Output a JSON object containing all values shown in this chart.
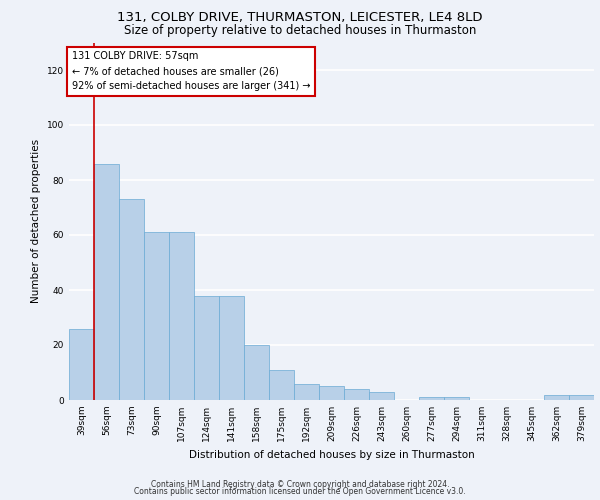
{
  "title_line1": "131, COLBY DRIVE, THURMASTON, LEICESTER, LE4 8LD",
  "title_line2": "Size of property relative to detached houses in Thurmaston",
  "xlabel": "Distribution of detached houses by size in Thurmaston",
  "ylabel": "Number of detached properties",
  "categories": [
    "39sqm",
    "56sqm",
    "73sqm",
    "90sqm",
    "107sqm",
    "124sqm",
    "141sqm",
    "158sqm",
    "175sqm",
    "192sqm",
    "209sqm",
    "226sqm",
    "243sqm",
    "260sqm",
    "277sqm",
    "294sqm",
    "311sqm",
    "328sqm",
    "345sqm",
    "362sqm",
    "379sqm"
  ],
  "values": [
    26,
    86,
    73,
    61,
    61,
    38,
    38,
    20,
    11,
    6,
    5,
    4,
    3,
    0,
    1,
    1,
    0,
    0,
    0,
    2,
    2
  ],
  "bar_color": "#b8d0e8",
  "bar_edge_color": "#6aaad4",
  "highlight_color": "#cc0000",
  "annotation_text": "131 COLBY DRIVE: 57sqm\n← 7% of detached houses are smaller (26)\n92% of semi-detached houses are larger (341) →",
  "annotation_box_color": "#ffffff",
  "annotation_box_edge": "#cc0000",
  "ylim": [
    0,
    130
  ],
  "yticks": [
    0,
    20,
    40,
    60,
    80,
    100,
    120
  ],
  "footer_line1": "Contains HM Land Registry data © Crown copyright and database right 2024.",
  "footer_line2": "Contains public sector information licensed under the Open Government Licence v3.0.",
  "background_color": "#eef2f9",
  "plot_background": "#eef2f9",
  "grid_color": "#ffffff",
  "title_fontsize": 9.5,
  "subtitle_fontsize": 8.5,
  "axis_label_fontsize": 7.5,
  "tick_fontsize": 6.5,
  "annotation_fontsize": 7,
  "footer_fontsize": 5.5
}
